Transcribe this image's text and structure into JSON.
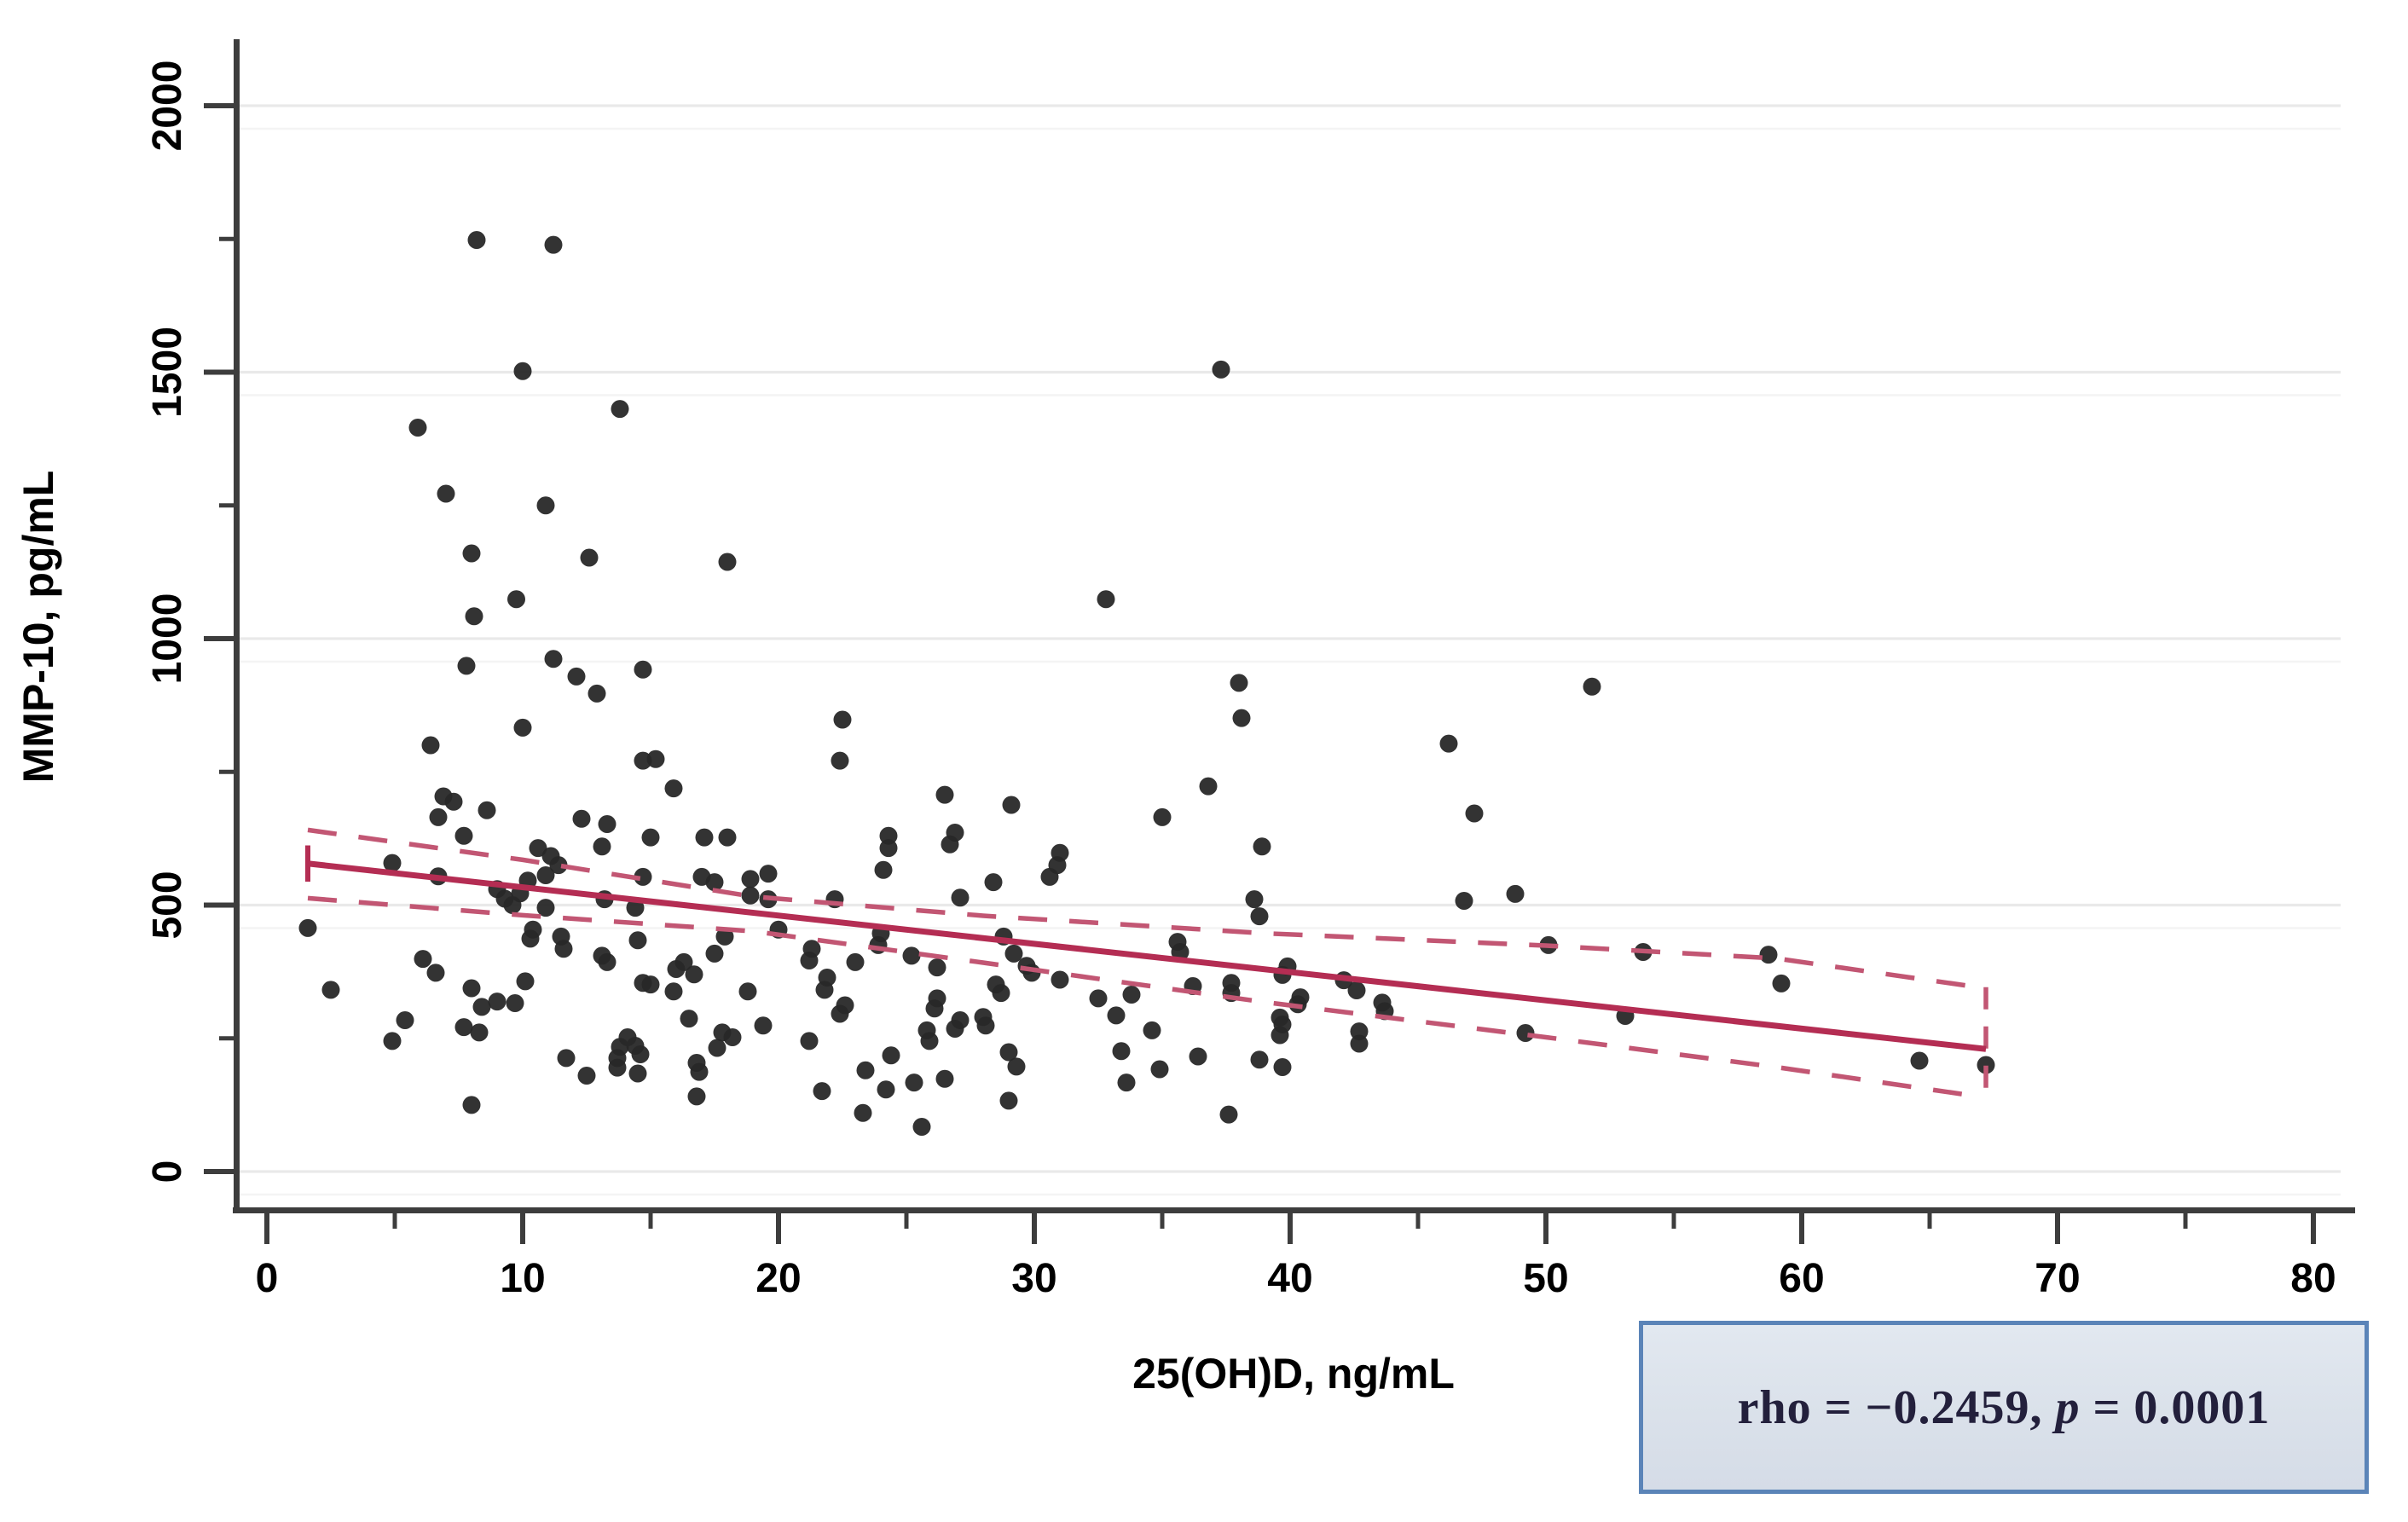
{
  "chart_data": {
    "type": "scatter",
    "title": "",
    "xlabel": "25(OH)D, ng/mL",
    "ylabel": "MMP-10, pg/mL",
    "xlim": [
      0,
      80
    ],
    "ylim": [
      0,
      2000
    ],
    "grid": "horizontal-only",
    "legend_position": "none",
    "x_ticks_major": [
      0,
      10,
      20,
      30,
      40,
      50,
      60,
      70,
      80
    ],
    "x_tick_labels": [
      "0",
      "10",
      "20",
      "30",
      "40",
      "50",
      "60",
      "70",
      "80"
    ],
    "x_ticks_minor": [
      5,
      15,
      25,
      35,
      45,
      55,
      65,
      75
    ],
    "y_ticks_major": [
      0,
      500,
      1000,
      1500,
      2000
    ],
    "y_tick_labels": [
      "0",
      "500",
      "1000",
      "1500",
      "2000"
    ],
    "y_ticks_minor": [
      250,
      750,
      1250,
      1750
    ],
    "y_gridlines": [
      0,
      500,
      1000,
      1500,
      2000
    ],
    "points": [
      [
        8.2,
        1748
      ],
      [
        11.2,
        1739
      ],
      [
        10.0,
        1502
      ],
      [
        37.3,
        1505
      ],
      [
        13.8,
        1431
      ],
      [
        5.9,
        1396
      ],
      [
        7.0,
        1272
      ],
      [
        10.9,
        1250
      ],
      [
        8.0,
        1160
      ],
      [
        12.6,
        1152
      ],
      [
        18.0,
        1144
      ],
      [
        9.75,
        1074
      ],
      [
        8.1,
        1042
      ],
      [
        32.8,
        1074
      ],
      [
        7.8,
        949
      ],
      [
        11.2,
        962
      ],
      [
        12.1,
        929
      ],
      [
        14.7,
        942
      ],
      [
        12.9,
        897
      ],
      [
        10.0,
        833
      ],
      [
        6.4,
        800
      ],
      [
        22.5,
        848
      ],
      [
        22.4,
        771
      ],
      [
        38.0,
        917
      ],
      [
        38.1,
        851
      ],
      [
        51.8,
        910
      ],
      [
        46.2,
        803
      ],
      [
        14.7,
        771
      ],
      [
        15.2,
        774
      ],
      [
        15.9,
        719
      ],
      [
        6.9,
        704
      ],
      [
        7.3,
        694
      ],
      [
        6.7,
        665
      ],
      [
        7.7,
        630
      ],
      [
        8.6,
        678
      ],
      [
        12.3,
        662
      ],
      [
        13.3,
        652
      ],
      [
        15.0,
        627
      ],
      [
        26.5,
        707
      ],
      [
        29.1,
        688
      ],
      [
        36.8,
        723
      ],
      [
        35.0,
        665
      ],
      [
        47.2,
        672
      ],
      [
        26.9,
        636
      ],
      [
        26.7,
        614
      ],
      [
        24.3,
        630
      ],
      [
        24.3,
        607
      ],
      [
        24.1,
        566
      ],
      [
        31.0,
        598
      ],
      [
        30.9,
        575
      ],
      [
        30.6,
        553
      ],
      [
        4.9,
        579
      ],
      [
        10.6,
        607
      ],
      [
        11.1,
        592
      ],
      [
        11.4,
        575
      ],
      [
        10.9,
        556
      ],
      [
        13.1,
        610
      ],
      [
        38.9,
        610
      ],
      [
        9.0,
        530
      ],
      [
        9.3,
        512
      ],
      [
        9.6,
        500
      ],
      [
        9.9,
        522
      ],
      [
        10.2,
        546
      ],
      [
        10.9,
        495
      ],
      [
        6.7,
        554
      ],
      [
        19.6,
        559
      ],
      [
        18.9,
        549
      ],
      [
        19.6,
        511
      ],
      [
        18.9,
        518
      ],
      [
        28.4,
        543
      ],
      [
        27.1,
        514
      ],
      [
        22.2,
        511
      ],
      [
        13.2,
        511
      ],
      [
        14.4,
        495
      ],
      [
        14.7,
        553
      ],
      [
        17.1,
        627
      ],
      [
        18.0,
        627
      ],
      [
        17.0,
        553
      ],
      [
        17.5,
        543
      ],
      [
        46.8,
        508
      ],
      [
        48.8,
        521
      ],
      [
        38.6,
        511
      ],
      [
        38.8,
        479
      ],
      [
        1.6,
        457
      ],
      [
        2.5,
        341
      ],
      [
        6.1,
        399
      ],
      [
        6.6,
        373
      ],
      [
        10.4,
        454
      ],
      [
        10.3,
        437
      ],
      [
        11.5,
        441
      ],
      [
        11.6,
        418
      ],
      [
        20.0,
        454
      ],
      [
        24.0,
        447
      ],
      [
        23.9,
        425
      ],
      [
        28.8,
        441
      ],
      [
        35.6,
        431
      ],
      [
        35.7,
        412
      ],
      [
        50.1,
        425
      ],
      [
        53.8,
        412
      ],
      [
        58.7,
        407
      ],
      [
        8.0,
        344
      ],
      [
        8.4,
        309
      ],
      [
        7.7,
        271
      ],
      [
        8.3,
        261
      ],
      [
        9.0,
        319
      ],
      [
        9.7,
        316
      ],
      [
        10.1,
        357
      ],
      [
        5.4,
        284
      ],
      [
        4.9,
        245
      ],
      [
        13.1,
        405
      ],
      [
        13.3,
        393
      ],
      [
        14.5,
        434
      ],
      [
        16.0,
        380
      ],
      [
        16.3,
        393
      ],
      [
        16.7,
        370
      ],
      [
        14.7,
        354
      ],
      [
        15.0,
        351
      ],
      [
        15.9,
        338
      ],
      [
        17.5,
        409
      ],
      [
        17.9,
        441
      ],
      [
        16.5,
        287
      ],
      [
        17.8,
        261
      ],
      [
        18.2,
        252
      ],
      [
        14.1,
        252
      ],
      [
        14.4,
        236
      ],
      [
        14.6,
        220
      ],
      [
        21.3,
        418
      ],
      [
        21.2,
        396
      ],
      [
        21.9,
        364
      ],
      [
        21.8,
        341
      ],
      [
        23.0,
        393
      ],
      [
        25.2,
        405
      ],
      [
        26.2,
        383
      ],
      [
        29.2,
        409
      ],
      [
        29.7,
        386
      ],
      [
        29.9,
        373
      ],
      [
        31.0,
        360
      ],
      [
        28.5,
        351
      ],
      [
        28.7,
        335
      ],
      [
        26.2,
        325
      ],
      [
        26.1,
        306
      ],
      [
        27.1,
        284
      ],
      [
        26.9,
        268
      ],
      [
        28.0,
        290
      ],
      [
        28.1,
        274
      ],
      [
        25.8,
        265
      ],
      [
        25.9,
        245
      ],
      [
        22.6,
        312
      ],
      [
        22.4,
        296
      ],
      [
        21.2,
        245
      ],
      [
        19.4,
        274
      ],
      [
        18.8,
        338
      ],
      [
        32.5,
        325
      ],
      [
        33.2,
        293
      ],
      [
        33.8,
        332
      ],
      [
        34.6,
        265
      ],
      [
        36.2,
        348
      ],
      [
        37.7,
        354
      ],
      [
        37.7,
        335
      ],
      [
        39.7,
        369
      ],
      [
        39.9,
        385
      ],
      [
        40.3,
        314
      ],
      [
        40.4,
        327
      ],
      [
        39.6,
        289
      ],
      [
        39.7,
        276
      ],
      [
        42.1,
        359
      ],
      [
        42.6,
        340
      ],
      [
        43.6,
        317
      ],
      [
        43.7,
        301
      ],
      [
        42.7,
        263
      ],
      [
        42.7,
        240
      ],
      [
        49.2,
        260
      ],
      [
        53.1,
        292
      ],
      [
        39.6,
        256
      ],
      [
        59.2,
        353
      ],
      [
        64.6,
        208
      ],
      [
        67.2,
        200
      ],
      [
        8.0,
        125
      ],
      [
        11.7,
        213
      ],
      [
        12.5,
        180
      ],
      [
        13.7,
        213
      ],
      [
        13.7,
        195
      ],
      [
        13.8,
        234
      ],
      [
        14.5,
        184
      ],
      [
        16.8,
        204
      ],
      [
        16.9,
        187
      ],
      [
        16.8,
        141
      ],
      [
        17.6,
        232
      ],
      [
        21.7,
        151
      ],
      [
        23.4,
        190
      ],
      [
        23.3,
        110
      ],
      [
        24.4,
        218
      ],
      [
        24.2,
        154
      ],
      [
        25.3,
        167
      ],
      [
        25.6,
        84
      ],
      [
        26.5,
        174
      ],
      [
        29.0,
        224
      ],
      [
        29.3,
        197
      ],
      [
        29.0,
        133
      ],
      [
        33.4,
        226
      ],
      [
        34.9,
        192
      ],
      [
        33.6,
        167
      ],
      [
        36.4,
        216
      ],
      [
        37.6,
        107
      ],
      [
        38.8,
        210
      ],
      [
        39.7,
        196
      ]
    ],
    "fit_line": {
      "x1": 1.6,
      "y1": 578,
      "x2": 67.2,
      "y2": 230,
      "left_cap_y": [
        612,
        544
      ]
    },
    "ci_upper": {
      "x": [
        1.6,
        10,
        19,
        28,
        39,
        50,
        59,
        66.9
      ],
      "y": [
        641,
        585,
        516,
        480,
        447,
        424,
        400,
        346
      ]
    },
    "ci_lower": {
      "x": [
        1.6,
        10,
        19,
        28,
        39,
        50,
        59,
        66.9
      ],
      "y": [
        513,
        481,
        451,
        392,
        318,
        252,
        196,
        141
      ]
    },
    "ci_right_cap": {
      "x": 67.2,
      "y_top": 346,
      "y_bottom": 141
    },
    "annotation": {
      "text_before_p": "rho = −0.2459, ",
      "p_symbol": "p",
      "text_after_p": " = 0.0001"
    },
    "colors": {
      "point": "#282828",
      "fit_line": "#b42d53",
      "ci_line": "#c25673",
      "gridline": "#e9e9e9",
      "gridline_faint": "#f4f4f4",
      "axis": "#3d3d3d",
      "tick_text": "#000000",
      "box_bg": "#dce3ec",
      "box_border": "#5b84b8",
      "box_text": "#23203c"
    }
  }
}
